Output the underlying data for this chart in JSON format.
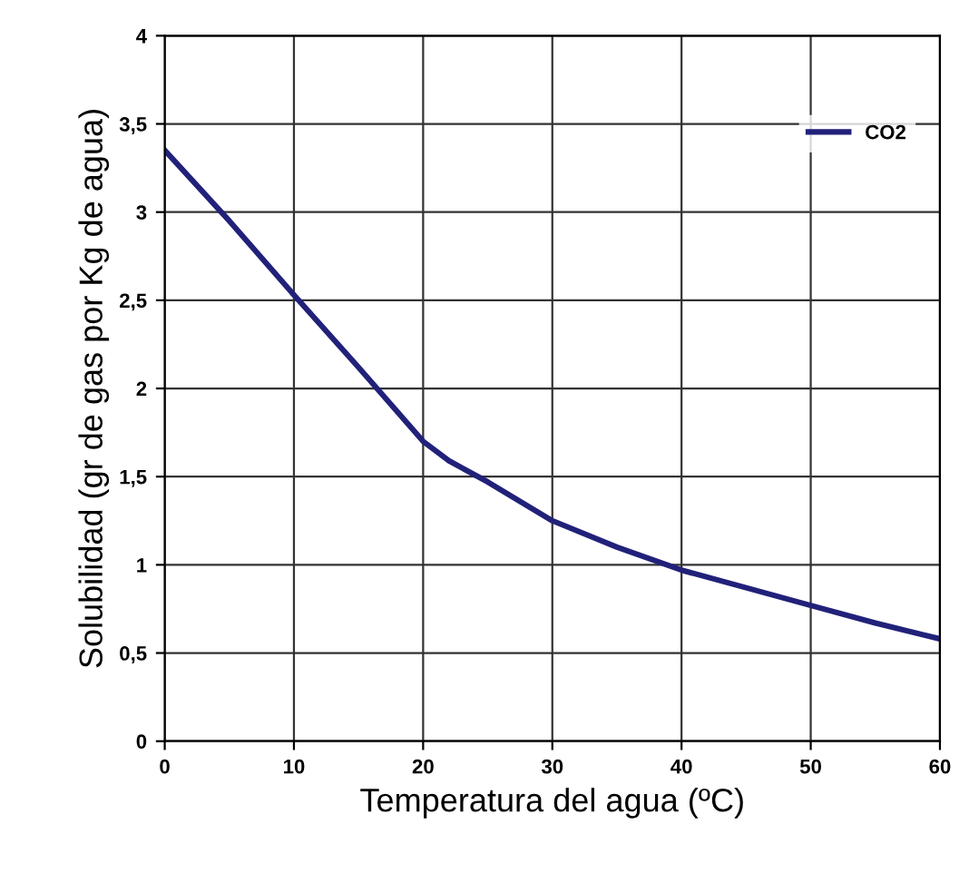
{
  "chart_data": {
    "type": "line",
    "xlabel": "Temperatura del agua (ºC)",
    "ylabel": "Solubilidad (gr de gas por Kg de agua)",
    "x": [
      0,
      5,
      10,
      15,
      20,
      22,
      25,
      30,
      35,
      40,
      45,
      50,
      55,
      60
    ],
    "series": [
      {
        "name": "CO2",
        "color": "#22217a",
        "values": [
          3.35,
          2.95,
          2.53,
          2.12,
          1.7,
          1.59,
          1.47,
          1.25,
          1.1,
          0.97,
          0.87,
          0.77,
          0.67,
          0.58
        ]
      }
    ],
    "xlim": [
      0,
      60
    ],
    "xticks": [
      0,
      10,
      20,
      30,
      40,
      50,
      60
    ],
    "ylim": [
      0,
      4
    ],
    "yticks": [
      0,
      {
        "value": 0.5,
        "label": "0,5"
      },
      1,
      {
        "value": 1.5,
        "label": "1,5"
      },
      2,
      {
        "value": 2.5,
        "label": "2,5"
      },
      3,
      {
        "value": 3.5,
        "label": "3,5"
      },
      4
    ],
    "grid": true,
    "legend": "top right",
    "marker": "none",
    "line_style": "solid"
  }
}
